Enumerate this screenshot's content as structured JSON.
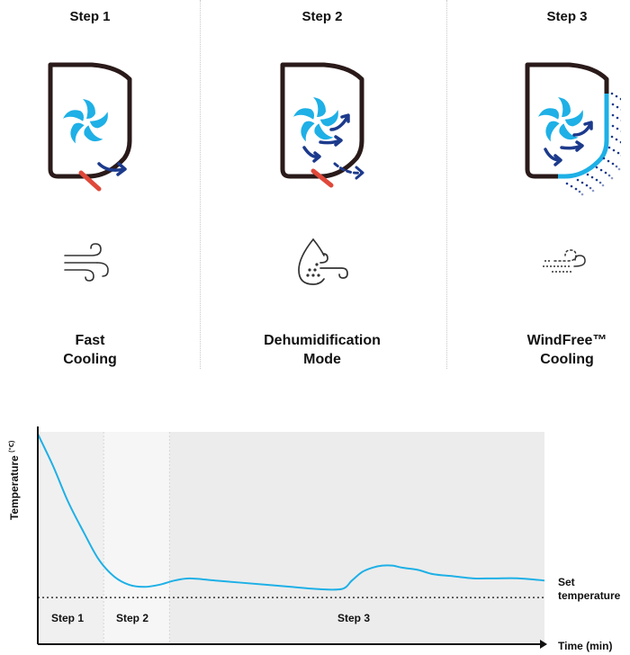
{
  "steps": [
    {
      "title": "Step 1",
      "mode_line1": "Fast",
      "mode_line2": "Cooling",
      "unit_icon": "ac-fan-airflow-icon",
      "mode_icon": "wind-icon"
    },
    {
      "title": "Step 2",
      "mode_line1": "Dehumidification",
      "mode_line2": "Mode",
      "unit_icon": "ac-fan-airflow-icon",
      "mode_icon": "droplet-wind-icon"
    },
    {
      "title": "Step 3",
      "mode_line1": "WindFree™",
      "mode_line2": "Cooling",
      "unit_icon": "ac-windfree-micro-holes-icon",
      "mode_icon": "gentle-breeze-icon"
    }
  ],
  "colors": {
    "fan": "#1eb0e6",
    "arrow": "#1c3a8c",
    "flap": "#e0483a",
    "body": "#2a1a1a",
    "curve": "#1eb0e6",
    "band1": "#f0f0f0",
    "band2": "#f6f6f6",
    "band3": "#ececec"
  },
  "chart_data": {
    "type": "line",
    "ylabel": "Temperature",
    "ylabel_unit": "(℃)",
    "xlabel": "Time (min)",
    "phases": [
      "Step 1",
      "Step 2",
      "Step 3"
    ],
    "set_temperature_label_line1": "Set",
    "set_temperature_label_line2": "temperature",
    "ylim": [
      0,
      100
    ],
    "phase_bounds": [
      0,
      13,
      26,
      100
    ],
    "set_temperature": 22,
    "x": [
      0,
      3,
      6,
      9,
      12,
      15,
      18,
      21,
      24,
      27,
      30,
      35,
      40,
      45,
      50,
      55,
      60,
      62,
      64,
      66,
      68,
      70,
      72,
      75,
      78,
      82,
      86,
      90,
      95,
      100
    ],
    "y": [
      99,
      84,
      67,
      53,
      40,
      32,
      28,
      27,
      28,
      30,
      31,
      30,
      29,
      28,
      27,
      26,
      26,
      30,
      34,
      36,
      37,
      37,
      36,
      35,
      33,
      32,
      31,
      31,
      31,
      30
    ]
  }
}
